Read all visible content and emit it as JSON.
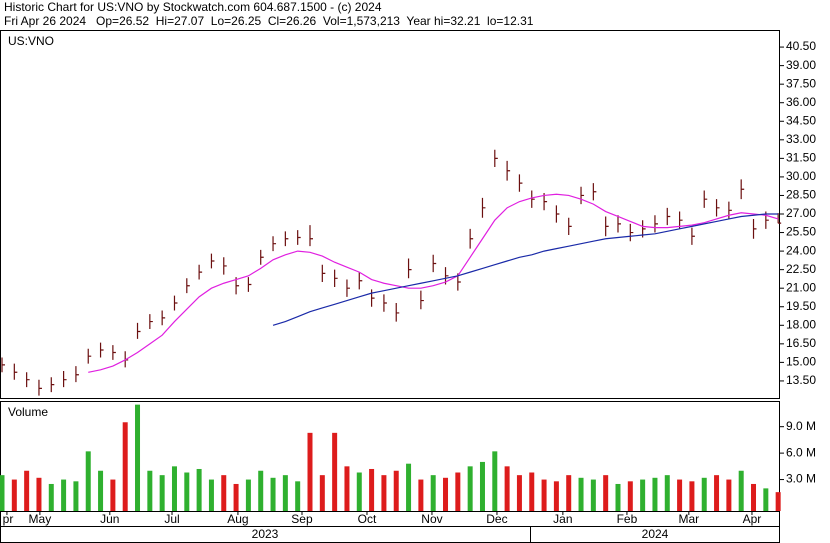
{
  "chart_data": {
    "type": "ohlc",
    "title": "Historic Chart for US:VNO by Stockwatch.com 604.687.1500 - (c) 2024",
    "subtitle": "Fri Apr 26 2024   Op=26.52  Hi=27.07  Lo=26.25  Cl=26.26  Vol=1,573,213  Year hi=32.21  lo=12.31",
    "symbol": "US:VNO",
    "volume_label": "Volume",
    "up_color": "#2fb02f",
    "down_color": "#dd1c1c",
    "bar_color": "#6b0f0f",
    "x": [
      0,
      4,
      8,
      12,
      16,
      20,
      24,
      28,
      32,
      36,
      40,
      44,
      48,
      52,
      56,
      60,
      64,
      68,
      72,
      76,
      80,
      84,
      88,
      92,
      96,
      100,
      104,
      108,
      112,
      116,
      120,
      124,
      128,
      132,
      136,
      140,
      144,
      148,
      152,
      156,
      160,
      164,
      168,
      172,
      176,
      180,
      184,
      188,
      192,
      196,
      200,
      204,
      208,
      212,
      216,
      220,
      224,
      228,
      232,
      236,
      240,
      244,
      248,
      252
    ],
    "xlim": [
      -0.65,
      252.6
    ],
    "xticks": [
      {
        "value": 1.6,
        "label": "pr"
      },
      {
        "value": 12.3,
        "label": "May"
      },
      {
        "value": 35,
        "label": "Jun"
      },
      {
        "value": 55.2,
        "label": "Jul"
      },
      {
        "value": 76.6,
        "label": "Aug"
      },
      {
        "value": 97.4,
        "label": "Sep"
      },
      {
        "value": 118.5,
        "label": "Oct"
      },
      {
        "value": 139.6,
        "label": "Nov"
      },
      {
        "value": 160.7,
        "label": "Dec"
      },
      {
        "value": 182.1,
        "label": "Jan"
      },
      {
        "value": 202.9,
        "label": "Feb"
      },
      {
        "value": 223,
        "label": "Mar"
      },
      {
        "value": 243.5,
        "label": "Apr"
      }
    ],
    "years": [
      "2023",
      "2024"
    ],
    "high": [
      15.4,
      14.9,
      14.2,
      13.6,
      13.8,
      14.3,
      14.7,
      16.1,
      16.6,
      16.4,
      15.9,
      18.2,
      18.9,
      19.2,
      20.4,
      21.8,
      22.9,
      23.8,
      23.5,
      21.9,
      21.9,
      24.1,
      25.2,
      25.6,
      25.7,
      26.1,
      22.9,
      22.5,
      21.7,
      22.3,
      20.9,
      20.5,
      19.8,
      23.4,
      20.8,
      23.7,
      22.7,
      22.2,
      25.8,
      28.3,
      32.2,
      31.3,
      30.2,
      28.9,
      28.7,
      27.7,
      26.7,
      29.2,
      29.5,
      26.8,
      26.9,
      26.2,
      26.5,
      26.9,
      27.5,
      27.2,
      25.9,
      28.9,
      28.2,
      28.0,
      29.8,
      26.6,
      27.2,
      27.07
    ],
    "low": [
      14.2,
      13.6,
      13.0,
      12.31,
      12.6,
      13.0,
      13.4,
      14.9,
      15.4,
      15.2,
      14.6,
      16.9,
      17.7,
      18.0,
      19.2,
      20.6,
      21.7,
      22.6,
      22.1,
      20.5,
      20.7,
      22.9,
      24.0,
      24.4,
      24.5,
      24.4,
      21.5,
      21.1,
      20.3,
      20.9,
      19.5,
      19.1,
      18.3,
      21.8,
      19.3,
      22.3,
      21.3,
      20.8,
      24.2,
      26.7,
      30.8,
      29.7,
      28.8,
      27.5,
      27.3,
      26.3,
      25.3,
      27.8,
      28.1,
      25.2,
      25.5,
      24.8,
      25.1,
      25.5,
      26.1,
      25.8,
      24.5,
      27.5,
      26.8,
      26.6,
      28.2,
      25.0,
      25.8,
      26.25
    ],
    "close": [
      14.8,
      14.2,
      13.6,
      12.9,
      13.2,
      13.6,
      14.0,
      15.5,
      16.0,
      15.8,
      15.2,
      17.5,
      18.3,
      18.6,
      19.8,
      21.2,
      22.3,
      23.2,
      22.8,
      21.2,
      21.3,
      23.5,
      24.6,
      25.0,
      25.1,
      25.0,
      22.2,
      21.8,
      21.0,
      21.6,
      20.2,
      19.8,
      19.0,
      22.5,
      20.0,
      23.0,
      22.0,
      21.5,
      25.0,
      27.5,
      31.5,
      30.5,
      29.5,
      28.2,
      28.0,
      27.0,
      26.0,
      28.5,
      28.8,
      26.0,
      26.2,
      25.5,
      25.8,
      26.2,
      26.8,
      26.5,
      25.2,
      28.2,
      27.5,
      27.3,
      29.0,
      25.8,
      26.5,
      26.26
    ],
    "ylim": [
      12.12,
      41.8
    ],
    "yticks": [
      {
        "value": 13.5,
        "label": "13.50"
      },
      {
        "value": 15,
        "label": "15.00"
      },
      {
        "value": 16.5,
        "label": "16.50"
      },
      {
        "value": 18,
        "label": "18.00"
      },
      {
        "value": 19.5,
        "label": "19.50"
      },
      {
        "value": 21,
        "label": "21.00"
      },
      {
        "value": 22.5,
        "label": "22.50"
      },
      {
        "value": 24,
        "label": "24.00"
      },
      {
        "value": 25.5,
        "label": "25.50"
      },
      {
        "value": 27,
        "label": "27.00"
      },
      {
        "value": 28.5,
        "label": "28.50"
      },
      {
        "value": 30,
        "label": "30.00"
      },
      {
        "value": 31.5,
        "label": "31.50"
      },
      {
        "value": 33,
        "label": "33.00"
      },
      {
        "value": 34.5,
        "label": "34.50"
      },
      {
        "value": 36,
        "label": "36.00"
      },
      {
        "value": 37.5,
        "label": "37.50"
      },
      {
        "value": 39,
        "label": "39.00"
      },
      {
        "value": 40.5,
        "label": "40.50"
      }
    ],
    "series": [
      {
        "color": "#e020e0",
        "values": [
          null,
          null,
          null,
          null,
          null,
          null,
          null,
          14.2,
          14.4,
          14.7,
          15.2,
          15.8,
          16.5,
          17.2,
          18.3,
          19.3,
          20.3,
          21.0,
          21.4,
          21.7,
          22.0,
          22.6,
          23.3,
          23.7,
          24.0,
          23.9,
          23.6,
          23.1,
          22.7,
          22.3,
          21.7,
          21.4,
          21.2,
          21.0,
          21.0,
          21.2,
          21.5,
          22.0,
          23.5,
          25.0,
          26.5,
          27.5,
          28.0,
          28.3,
          28.5,
          28.6,
          28.5,
          28.2,
          27.8,
          27.2,
          26.8,
          26.4,
          26.0,
          25.9,
          25.9,
          26.0,
          26.1,
          26.3,
          26.6,
          26.9,
          27.1,
          27.0,
          26.9,
          26.6
        ]
      },
      {
        "color": "#1a2aa8",
        "values": [
          null,
          null,
          null,
          null,
          null,
          null,
          null,
          null,
          null,
          null,
          null,
          null,
          null,
          null,
          null,
          null,
          null,
          null,
          null,
          null,
          null,
          null,
          18.0,
          18.3,
          18.7,
          19.1,
          19.4,
          19.7,
          20.0,
          20.3,
          20.6,
          20.8,
          21.0,
          21.2,
          21.4,
          21.6,
          21.8,
          22.0,
          22.3,
          22.6,
          22.9,
          23.2,
          23.5,
          23.7,
          24.0,
          24.2,
          24.4,
          24.6,
          24.8,
          25.0,
          25.1,
          25.2,
          25.3,
          25.4,
          25.6,
          25.8,
          26.0,
          26.2,
          26.4,
          26.6,
          26.8,
          26.9,
          27.0,
          27.0
        ]
      }
    ],
    "volume": [
      3.5,
      3.0,
      4.0,
      3.2,
      2.5,
      3.0,
      2.8,
      6.2,
      4.0,
      3.0,
      9.5,
      11.5,
      4.0,
      3.5,
      4.5,
      3.8,
      4.2,
      3.0,
      3.5,
      2.5,
      3.0,
      4.0,
      3.2,
      3.5,
      2.8,
      8.3,
      3.5,
      8.3,
      4.5,
      3.8,
      4.2,
      3.5,
      4.0,
      4.8,
      3.0,
      3.5,
      3.2,
      3.8,
      4.5,
      5.0,
      6.2,
      4.5,
      3.5,
      3.8,
      3.0,
      2.8,
      3.5,
      3.2,
      3.0,
      3.5,
      2.5,
      2.8,
      3.0,
      3.2,
      3.5,
      3.0,
      2.8,
      3.2,
      3.5,
      3.0,
      4.0,
      2.5,
      2.0,
      1.57
    ],
    "volume_ylim": [
      0,
      11.8
    ],
    "volume_yticks": [
      {
        "value": 3,
        "label": "3.0 M"
      },
      {
        "value": 6,
        "label": "6.0 M"
      },
      {
        "value": 9,
        "label": "9.0 M"
      }
    ]
  }
}
